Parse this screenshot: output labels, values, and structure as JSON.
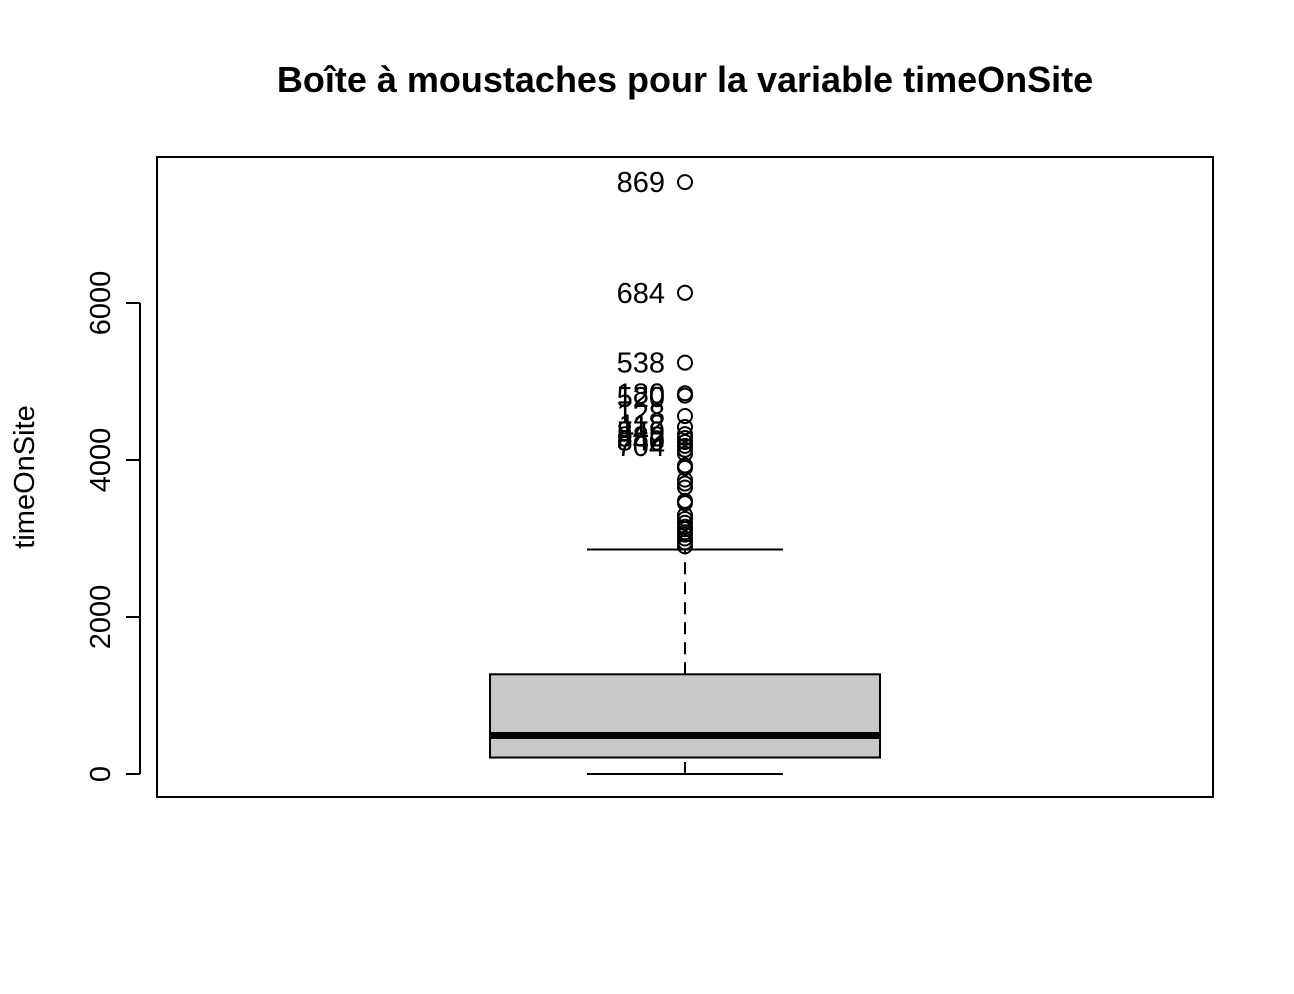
{
  "chart_data": {
    "type": "box",
    "title": "Boîte à moustaches pour la variable timeOnSite",
    "ylabel": "timeOnSite",
    "xlabel": "",
    "ylim": [
      -300,
      7800
    ],
    "yticks": [
      0,
      2000,
      4000,
      6000
    ],
    "grid": false,
    "legend": "none",
    "box": {
      "min": 0,
      "q1": 210,
      "median": 490,
      "q3": 1270,
      "max": 2860,
      "fill_color": "#c8c8c8"
    },
    "outliers": [
      2900,
      2950,
      3000,
      3050,
      3080,
      3120,
      3150,
      3200,
      3250,
      3300,
      3450,
      3480,
      3650,
      3700,
      3750,
      3900,
      3930,
      4080,
      4130,
      4180,
      4230,
      4280,
      4330,
      4420,
      4560,
      4820,
      4850,
      5240,
      6130,
      7540
    ],
    "labeled_outliers": [
      {
        "label": "869",
        "value": 7540
      },
      {
        "label": "684",
        "value": 6130
      },
      {
        "label": "538",
        "value": 5240
      },
      {
        "label": "180",
        "value": 4850
      },
      {
        "label": "520",
        "value": 4800
      },
      {
        "label": "128",
        "value": 4590
      },
      {
        "label": "112",
        "value": 4450
      },
      {
        "label": "849",
        "value": 4360
      },
      {
        "label": "882",
        "value": 4300
      },
      {
        "label": "840",
        "value": 4250
      },
      {
        "label": "704",
        "value": 4180
      }
    ]
  }
}
